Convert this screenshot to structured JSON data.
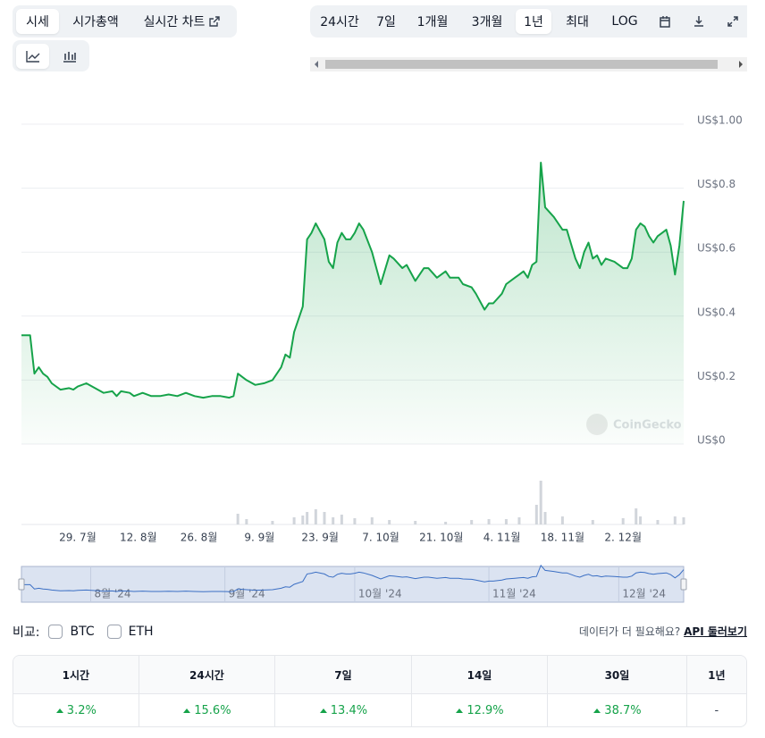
{
  "tabs": {
    "view": [
      "시세",
      "시가총액",
      "실시간 차트"
    ],
    "range": [
      "24시간",
      "7일",
      "1개월",
      "3개월",
      "1년",
      "최대",
      "LOG"
    ]
  },
  "chart_data": {
    "type": "line",
    "color": "#16a34a",
    "x": [
      "16. 7월",
      "18. 7월",
      "19. 7월",
      "20. 7월",
      "21. 7월",
      "22. 7월",
      "23. 7월",
      "25. 7월",
      "27. 7월",
      "28. 7월",
      "29. 7월",
      "31. 7월",
      "2. 8월",
      "4. 8월",
      "6. 8월",
      "7. 8월",
      "8. 8월",
      "10. 8월",
      "11. 8월",
      "13. 8월",
      "15. 8월",
      "17. 8월",
      "19. 8월",
      "21. 8월",
      "23. 8월",
      "25. 8월",
      "27. 8월",
      "29. 8월",
      "31. 8월",
      "2. 9월",
      "3. 9월",
      "4. 9월",
      "6. 9월",
      "8. 9월",
      "10. 9월",
      "12. 9월",
      "14. 9월",
      "15. 9월",
      "16. 9월",
      "17. 9월",
      "19. 9월",
      "20. 9월",
      "21. 9월",
      "22. 9월",
      "24. 9월",
      "25. 9월",
      "26. 9월",
      "27. 9월",
      "28. 9월",
      "29. 9월",
      "30. 9월",
      "1. 10월",
      "2. 10월",
      "3. 10월",
      "5. 10월",
      "7. 10월",
      "9. 10월",
      "10. 10월",
      "12. 10월",
      "13. 10월",
      "15. 10월",
      "17. 10월",
      "18. 10월",
      "20. 10월",
      "22. 10월",
      "23. 10월",
      "25. 10월",
      "26. 10월",
      "28. 10월",
      "29. 10월",
      "31. 10월",
      "1. 11월",
      "2. 11월",
      "4. 11월",
      "5. 11월",
      "7. 11월",
      "8. 11월",
      "9. 11월",
      "10. 11월",
      "11. 11월",
      "12. 11월",
      "13. 11월",
      "14. 11월",
      "16. 11월",
      "18. 11월",
      "19. 11월",
      "21. 11월",
      "22. 11월",
      "23. 11월",
      "24. 11월",
      "25. 11월",
      "26. 11월",
      "27. 11월",
      "28. 11월",
      "30. 11월",
      "2. 12월",
      "3. 12월",
      "4. 12월",
      "5. 12월",
      "6. 12월",
      "7. 12월",
      "8. 12월",
      "9. 12월",
      "10. 12월",
      "11. 12월",
      "12. 12월",
      "13. 12월",
      "14. 12월",
      "15. 12월",
      "16. 12월"
    ],
    "values": [
      0.34,
      0.34,
      0.22,
      0.24,
      0.22,
      0.21,
      0.19,
      0.17,
      0.175,
      0.17,
      0.18,
      0.19,
      0.175,
      0.16,
      0.165,
      0.15,
      0.165,
      0.16,
      0.15,
      0.16,
      0.15,
      0.15,
      0.155,
      0.15,
      0.16,
      0.15,
      0.145,
      0.15,
      0.15,
      0.145,
      0.15,
      0.22,
      0.2,
      0.185,
      0.19,
      0.2,
      0.24,
      0.28,
      0.27,
      0.35,
      0.43,
      0.64,
      0.66,
      0.69,
      0.64,
      0.57,
      0.55,
      0.63,
      0.66,
      0.64,
      0.64,
      0.66,
      0.69,
      0.67,
      0.6,
      0.5,
      0.59,
      0.58,
      0.55,
      0.56,
      0.51,
      0.55,
      0.55,
      0.52,
      0.54,
      0.52,
      0.52,
      0.5,
      0.49,
      0.47,
      0.42,
      0.44,
      0.44,
      0.47,
      0.5,
      0.52,
      0.53,
      0.54,
      0.52,
      0.56,
      0.57,
      0.88,
      0.74,
      0.71,
      0.67,
      0.67,
      0.58,
      0.55,
      0.6,
      0.63,
      0.58,
      0.59,
      0.56,
      0.58,
      0.57,
      0.55,
      0.55,
      0.58,
      0.67,
      0.69,
      0.68,
      0.65,
      0.63,
      0.65,
      0.66,
      0.67,
      0.62,
      0.53,
      0.62,
      0.76
    ],
    "xlim": [
      "16. 7월",
      "16. 12월"
    ],
    "xticks": [
      "29. 7월",
      "12. 8월",
      "26. 8월",
      "9. 9월",
      "23. 9월",
      "7. 10월",
      "21. 10월",
      "4. 11월",
      "18. 11월",
      "2. 12월"
    ],
    "ylim": [
      0,
      1
    ],
    "yticks": [
      {
        "value": 0,
        "label": "US$0"
      },
      {
        "value": 0.2,
        "label": "US$0.2"
      },
      {
        "value": 0.4,
        "label": "US$0.4"
      },
      {
        "value": 0.6,
        "label": "US$0.6"
      },
      {
        "value": 0.8,
        "label": "US$0.8"
      },
      {
        "value": 1,
        "label": "US$1.00"
      }
    ],
    "grid": true,
    "watermark": "CoinGecko",
    "volume": {
      "color": "#d1d5db",
      "ylim": [
        0,
        50
      ],
      "x": [
        "4. 9월",
        "6. 9월",
        "12. 9월",
        "17. 9월",
        "19. 9월",
        "20. 9월",
        "22. 9월",
        "24. 9월",
        "26. 9월",
        "28. 9월",
        "1. 10월",
        "5. 10월",
        "9. 10월",
        "15. 10월",
        "22. 10월",
        "28. 10월",
        "1. 11월",
        "5. 11월",
        "8. 11월",
        "12. 11월",
        "13. 11월",
        "14. 11월",
        "18. 11월",
        "25. 11월",
        "2. 12월",
        "5. 12월",
        "6. 12월",
        "10. 12월",
        "14. 12월",
        "16. 12월"
      ],
      "values": [
        12,
        6,
        4,
        8,
        10,
        14,
        17,
        14,
        8,
        11,
        7,
        8,
        5,
        4,
        3,
        5,
        6,
        6,
        8,
        22,
        49,
        14,
        9,
        5,
        7,
        18,
        9,
        5,
        9,
        8
      ]
    },
    "navigator": {
      "ticks": [
        {
          "value": "1. 8월",
          "label": "8월 '24"
        },
        {
          "value": "1. 9월",
          "label": "9월 '24"
        },
        {
          "value": "1. 10월",
          "label": "10월 '24"
        },
        {
          "value": "1. 11월",
          "label": "11월 '24"
        },
        {
          "value": "1. 12월",
          "label": "12월 '24"
        }
      ]
    }
  },
  "compare": {
    "label": "비교:",
    "options": [
      "BTC",
      "ETH"
    ]
  },
  "api": {
    "prompt": "데이터가 더 필요해요?",
    "link": "API 둘러보기"
  },
  "table": {
    "headers": [
      "1시간",
      "24시간",
      "7일",
      "14일",
      "30일",
      "1년"
    ],
    "values": [
      "3.2%",
      "15.6%",
      "13.4%",
      "12.9%",
      "38.7%",
      "-"
    ]
  }
}
